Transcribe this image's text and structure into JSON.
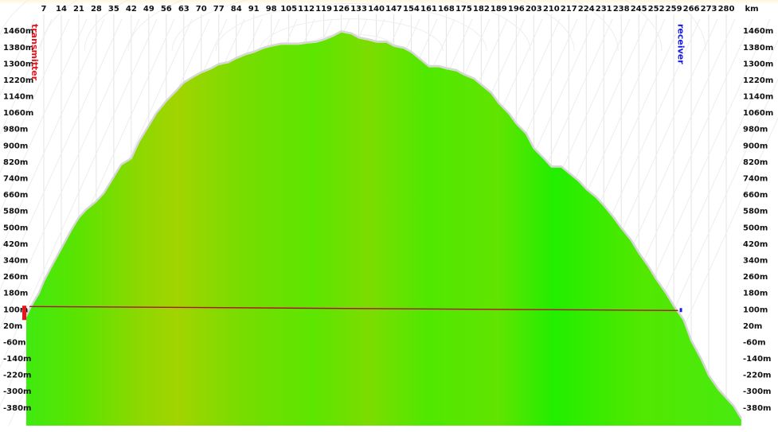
{
  "chart_data": {
    "type": "area",
    "title": "",
    "x_unit": "km",
    "y_unit": "m",
    "x_ticks": [
      7,
      14,
      21,
      28,
      35,
      42,
      49,
      56,
      63,
      70,
      77,
      84,
      91,
      98,
      105,
      112,
      119,
      126,
      133,
      140,
      147,
      154,
      161,
      168,
      175,
      182,
      189,
      196,
      203,
      210,
      217,
      224,
      231,
      238,
      245,
      252,
      259,
      266,
      273,
      280
    ],
    "x_tick_labels": [
      "7",
      "14",
      "21",
      "28",
      "35",
      "42",
      "49",
      "56",
      "63",
      "70",
      "77",
      "84",
      "91",
      "98",
      "105",
      "112",
      "119",
      "126",
      "133",
      "140",
      "147",
      "154",
      "161",
      "168",
      "175",
      "182",
      "189",
      "196",
      "203",
      "210",
      "217",
      "224",
      "231",
      "238",
      "245",
      "252",
      "259",
      "266",
      "273",
      "280"
    ],
    "y_ticks": [
      1460,
      1380,
      1300,
      1220,
      1140,
      1060,
      980,
      900,
      820,
      740,
      660,
      580,
      500,
      420,
      340,
      260,
      180,
      100,
      20,
      -60,
      -140,
      -220,
      -300,
      -380
    ],
    "y_tick_labels": [
      "1460m",
      "1380m",
      "1300m",
      "1220m",
      "1140m",
      "1060m",
      "980m",
      "900m",
      "820m",
      "740m",
      "660m",
      "580m",
      "500m",
      "420m",
      "340m",
      "260m",
      "180m",
      "100m",
      "20m",
      "-60m",
      "-140m",
      "-220m",
      "-300m",
      "-380m"
    ],
    "xlim": [
      0,
      287
    ],
    "ylim": [
      -470,
      1515
    ],
    "series": [
      {
        "x": [
          0,
          2,
          5,
          7,
          10,
          14,
          18,
          21,
          24,
          28,
          31,
          35,
          38,
          42,
          45,
          49,
          52,
          56,
          60,
          63,
          67,
          70,
          74,
          77,
          81,
          84,
          88,
          91,
          95,
          98,
          102,
          105,
          109,
          112,
          116,
          119,
          123,
          126,
          130,
          133,
          137,
          140,
          144,
          147,
          151,
          154,
          158,
          161,
          165,
          168,
          172,
          175,
          179,
          182,
          186,
          189,
          193,
          196,
          200,
          203,
          207,
          210,
          214,
          217,
          221,
          224,
          228,
          231,
          235,
          238,
          242,
          245,
          249,
          252,
          256,
          259,
          263,
          266,
          270,
          273,
          277,
          280,
          283,
          286
        ],
        "y": [
          60,
          110,
          170,
          230,
          300,
          390,
          480,
          540,
          580,
          620,
          660,
          740,
          800,
          830,
          910,
          990,
          1050,
          1110,
          1160,
          1200,
          1230,
          1250,
          1270,
          1290,
          1300,
          1320,
          1340,
          1350,
          1370,
          1380,
          1390,
          1390,
          1390,
          1395,
          1400,
          1410,
          1430,
          1450,
          1440,
          1420,
          1410,
          1400,
          1400,
          1380,
          1370,
          1350,
          1310,
          1280,
          1280,
          1270,
          1260,
          1240,
          1220,
          1190,
          1150,
          1100,
          1050,
          1000,
          950,
          880,
          830,
          790,
          790,
          760,
          720,
          680,
          640,
          600,
          540,
          490,
          430,
          370,
          300,
          240,
          170,
          110,
          40,
          -60,
          -150,
          -230,
          -300,
          -340,
          -380,
          -440
        ]
      }
    ],
    "line_of_sight": {
      "x": [
        0,
        262
      ],
      "y": [
        100,
        100
      ]
    },
    "transmitter": {
      "label": "transmitter",
      "x": 0,
      "color": "#e8141c"
    },
    "receiver": {
      "label": "receiver",
      "x": 262,
      "color": "#1a1ae6"
    },
    "colors": {
      "terrain": "#50e600",
      "terrain_dark": "#9ed600",
      "line_of_sight": "#b01030",
      "grid": "#e4e4e4"
    },
    "grid": true,
    "legend": "none"
  }
}
